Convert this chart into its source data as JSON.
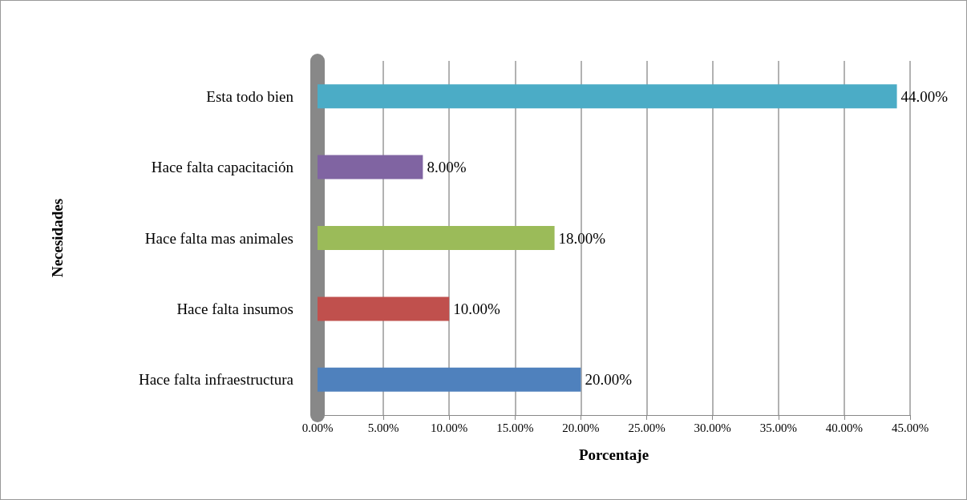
{
  "chart_data": {
    "type": "bar",
    "orientation": "horizontal",
    "xlabel": "Porcentaje",
    "ylabel": "Necesidades",
    "categories": [
      "Esta todo bien",
      "Hace falta capacitación",
      "Hace falta mas animales",
      "Hace falta insumos",
      "Hace falta infraestructura"
    ],
    "values": [
      44,
      8,
      18,
      10,
      20
    ],
    "colors": [
      "#4bacc6",
      "#8064a2",
      "#9bbb59",
      "#c0504d",
      "#4f81bd"
    ],
    "value_labels": [
      "44.00%",
      "8.00%",
      "18.00%",
      "10.00%",
      "20.00%"
    ],
    "xlim": [
      0,
      45
    ],
    "xticks": [
      {
        "value": 0,
        "label": "0.00%"
      },
      {
        "value": 5,
        "label": "5.00%"
      },
      {
        "value": 10,
        "label": "10.00%"
      },
      {
        "value": 15,
        "label": "15.00%"
      },
      {
        "value": 20,
        "label": "20.00%"
      },
      {
        "value": 25,
        "label": "25.00%"
      },
      {
        "value": 30,
        "label": "30.00%"
      },
      {
        "value": 35,
        "label": "35.00%"
      },
      {
        "value": 40,
        "label": "40.00%"
      },
      {
        "value": 45,
        "label": "45.00%"
      }
    ],
    "grid": "x"
  }
}
